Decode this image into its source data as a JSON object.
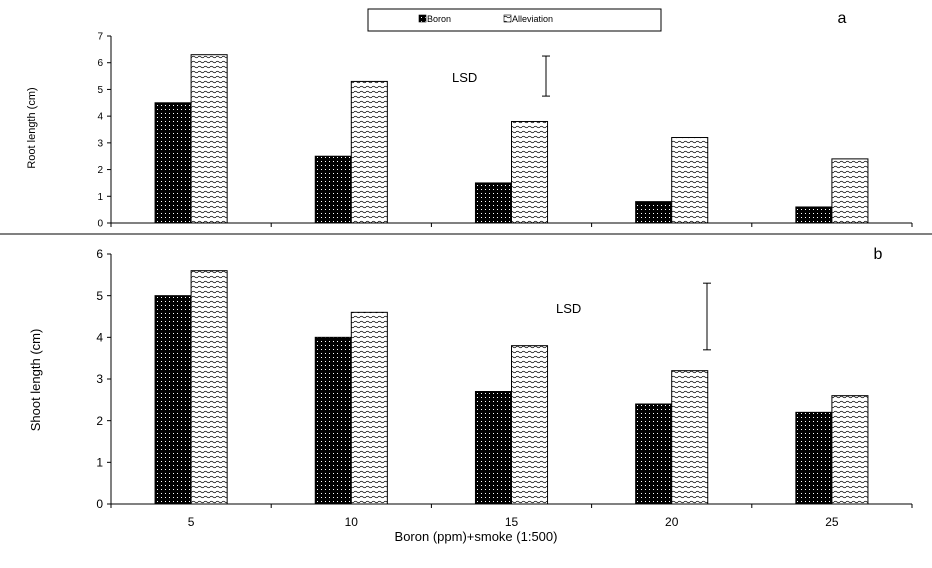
{
  "legend": {
    "series": [
      "Boron",
      "Alleviation"
    ]
  },
  "chart_data": [
    {
      "type": "bar",
      "panel_label": "a",
      "categories": [
        "5",
        "10",
        "15",
        "20",
        "25"
      ],
      "series": [
        {
          "name": "Boron",
          "values": [
            4.5,
            2.5,
            1.5,
            0.8,
            0.6
          ]
        },
        {
          "name": "Alleviation",
          "values": [
            6.3,
            5.3,
            3.8,
            3.2,
            2.4
          ]
        }
      ],
      "ylabel": "Root length (cm)",
      "xlabel": "",
      "ylim": [
        0,
        7
      ],
      "yticks": [
        "0",
        "1",
        "2",
        "3",
        "4",
        "5",
        "6",
        "7"
      ],
      "show_xtick_labels": false,
      "lsd": {
        "label": "LSD",
        "low": 4.75,
        "high": 6.25
      },
      "grid": false,
      "legend_position": "top-center"
    },
    {
      "type": "bar",
      "panel_label": "b",
      "categories": [
        "5",
        "10",
        "15",
        "20",
        "25"
      ],
      "series": [
        {
          "name": "Boron",
          "values": [
            5.0,
            4.0,
            2.7,
            2.4,
            2.2
          ]
        },
        {
          "name": "Alleviation",
          "values": [
            5.6,
            4.6,
            3.8,
            3.2,
            2.6
          ]
        }
      ],
      "ylabel": "Shoot length (cm)",
      "xlabel": "Boron (ppm)+smoke (1:500)",
      "ylim": [
        0,
        6
      ],
      "yticks": [
        "0",
        "1",
        "2",
        "3",
        "4",
        "5",
        "6"
      ],
      "show_xtick_labels": true,
      "lsd": {
        "label": "LSD",
        "low": 3.7,
        "high": 5.3
      },
      "grid": false
    }
  ]
}
